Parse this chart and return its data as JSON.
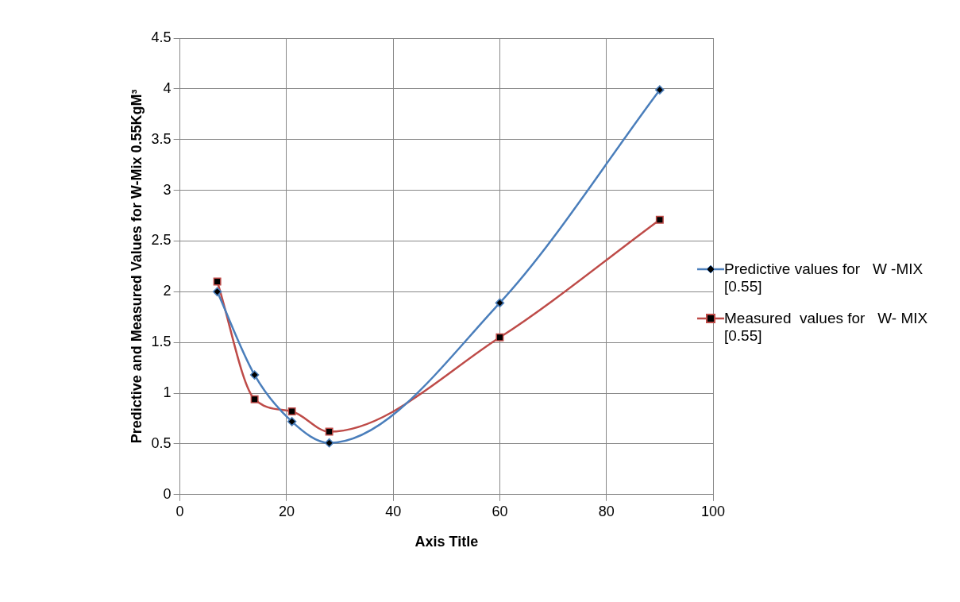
{
  "chart_data": {
    "type": "line",
    "xlabel": "Axis Title",
    "ylabel": "Predictive and Measured Values for W-Mix 0.55KgM³",
    "xlim": [
      0,
      100
    ],
    "xticks": [
      0,
      20,
      40,
      60,
      80,
      100
    ],
    "ylim": [
      0,
      4.5
    ],
    "yticks": [
      0,
      0.5,
      1,
      1.5,
      2,
      2.5,
      3,
      3.5,
      4,
      4.5
    ],
    "grid": true,
    "legend": "right",
    "x": [
      7,
      14,
      21,
      28,
      60,
      90
    ],
    "series": [
      {
        "name": "Predictive values for   W -MIX [0.55]",
        "color": "#4a7ebb",
        "marker": "diamond",
        "values": [
          2.0,
          1.18,
          0.72,
          0.51,
          1.89,
          3.99
        ]
      },
      {
        "name": "Measured  values for   W- MIX [0.55]",
        "color": "#be4b48",
        "marker": "square",
        "values": [
          2.1,
          0.94,
          0.82,
          0.62,
          1.55,
          2.71
        ]
      }
    ]
  }
}
